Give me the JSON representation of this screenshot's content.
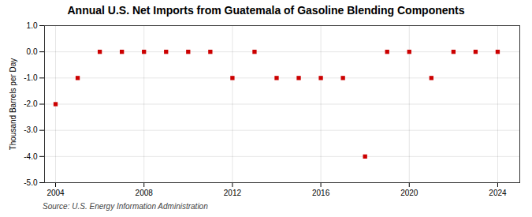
{
  "chart_data": {
    "type": "scatter",
    "title": "Annual U.S. Net Imports from Guatemala of Gasoline Blending Components",
    "ylabel": "Thousand Barrels per Day",
    "source": "Source: U.S. Energy Information Administration",
    "x": [
      2004,
      2005,
      2006,
      2007,
      2008,
      2009,
      2010,
      2011,
      2012,
      2013,
      2014,
      2015,
      2016,
      2017,
      2018,
      2019,
      2020,
      2021,
      2022,
      2023,
      2024
    ],
    "values": [
      -2.0,
      -1.0,
      0.0,
      0.0,
      0.0,
      0.0,
      0.0,
      0.0,
      -1.0,
      0.0,
      -1.0,
      -1.0,
      -1.0,
      -1.0,
      -4.0,
      0.0,
      0.0,
      -1.0,
      0.0,
      0.0,
      0.0
    ],
    "xlim": [
      2003.5,
      2025.0
    ],
    "xticks": [
      2004,
      2008,
      2012,
      2016,
      2020,
      2024
    ],
    "ylim": [
      -5.0,
      1.0
    ],
    "yticks": [
      {
        "value": 1.0,
        "label": "1.0"
      },
      {
        "value": 0.0,
        "label": "0.0"
      },
      {
        "value": -1.0,
        "label": "-1.0"
      },
      {
        "value": -2.0,
        "label": "-2.0"
      },
      {
        "value": -3.0,
        "label": "-3.0"
      },
      {
        "value": -4.0,
        "label": "-4.0"
      },
      {
        "value": -5.0,
        "label": "-5.0"
      }
    ],
    "color": "#cc0000",
    "marker": "square",
    "grid": true
  }
}
